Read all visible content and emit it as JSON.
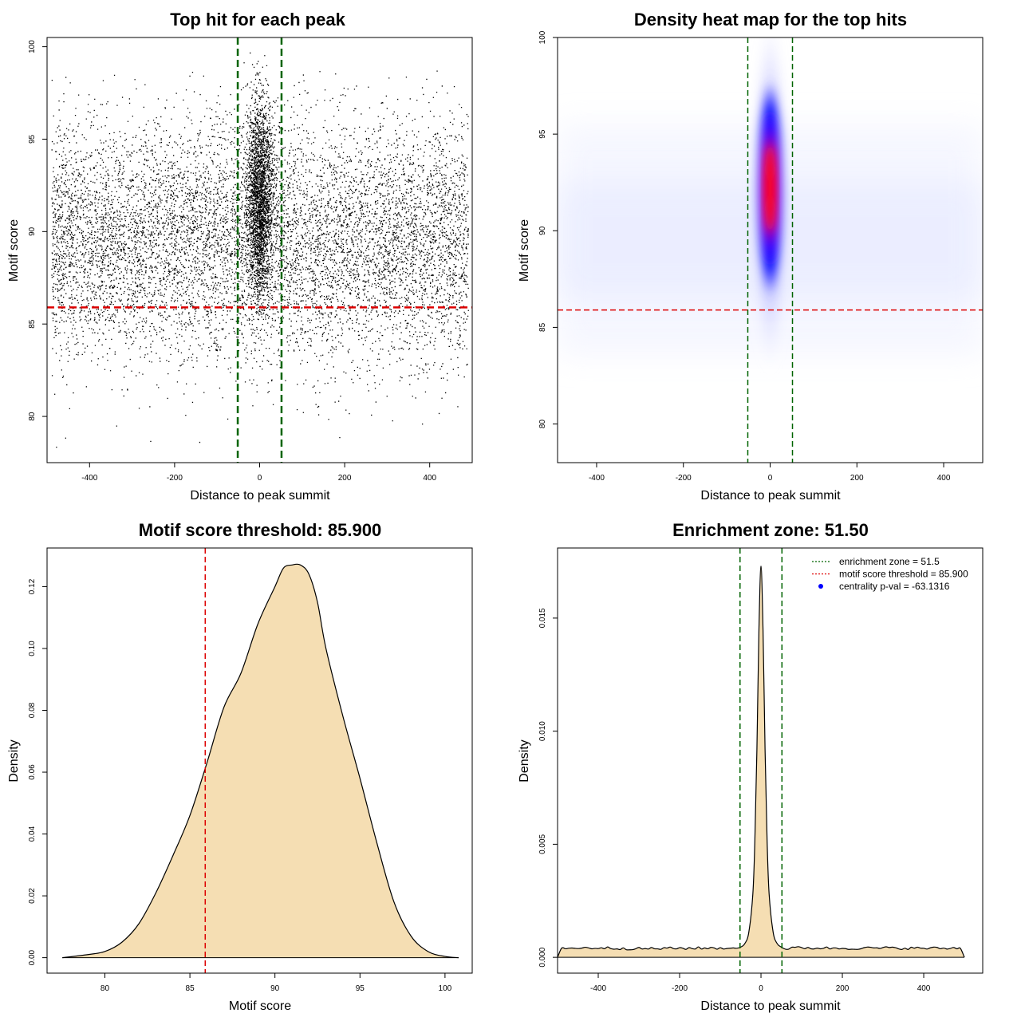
{
  "chart_data": [
    {
      "id": "scatter",
      "type": "scatter",
      "title": "Top hit for each peak",
      "xlabel": "Distance to peak summit",
      "ylabel": "Motif score",
      "xlim": [
        -500,
        500
      ],
      "ylim": [
        77.5,
        100.5
      ],
      "xticks": [
        -400,
        -200,
        0,
        200,
        400
      ],
      "yticks": [
        80,
        85,
        90,
        95,
        100
      ],
      "background_points": {
        "x_range": [
          -500,
          500
        ],
        "y_mean": 89.5,
        "y_sd": 3.2
      },
      "central_points": {
        "x_sd": 16,
        "y_mean": 91.8,
        "y_sd": 2.6,
        "y_range": [
          82.2,
          99.9
        ]
      },
      "ref_lines": [
        {
          "orientation": "vertical",
          "value": -51.5,
          "color": "#006400",
          "style": "dashed"
        },
        {
          "orientation": "vertical",
          "value": 51.5,
          "color": "#006400",
          "style": "dashed"
        },
        {
          "orientation": "horizontal",
          "value": 85.9,
          "color": "#dd0000",
          "style": "dashed"
        }
      ]
    },
    {
      "id": "heatmap",
      "type": "heatmap",
      "title": "Density heat map for the top hits",
      "xlabel": "Distance to peak summit",
      "ylabel": "Motif score",
      "xlim": [
        -490,
        490
      ],
      "ylim": [
        78,
        100
      ],
      "xticks": [
        -400,
        -200,
        0,
        200,
        400
      ],
      "yticks": [
        80,
        85,
        90,
        95,
        100
      ],
      "colors": [
        "#ffffff",
        "#0000ff",
        "#ff0000"
      ],
      "peak_center": {
        "x": 0,
        "y": 92.2
      },
      "ref_lines": [
        {
          "orientation": "vertical",
          "value": -51.5,
          "color": "#006400",
          "style": "dashed"
        },
        {
          "orientation": "vertical",
          "value": 51.5,
          "color": "#006400",
          "style": "dashed"
        },
        {
          "orientation": "horizontal",
          "value": 85.9,
          "color": "#dd0000",
          "style": "dashed"
        }
      ]
    },
    {
      "id": "density_score",
      "type": "area",
      "title": "Motif score threshold: 85.900",
      "xlabel": "Motif score",
      "ylabel": "Density",
      "xlim": [
        76.6,
        101.6
      ],
      "ylim": [
        -0.005,
        0.1325
      ],
      "xticks": [
        80,
        85,
        90,
        95,
        100
      ],
      "yticks": [
        0.0,
        0.02,
        0.04,
        0.06,
        0.08,
        0.1,
        0.12
      ],
      "ytick_labels": [
        "0.00",
        "0.02",
        "0.04",
        "0.06",
        "0.08",
        "0.10",
        "0.12"
      ],
      "fill_color": "#f5deb3",
      "x": [
        77.5,
        79,
        80,
        81,
        82,
        83,
        84,
        85,
        86,
        87,
        88,
        89,
        90,
        90.5,
        91,
        91.5,
        92,
        92.5,
        93,
        94,
        95,
        96,
        97,
        98,
        99,
        100,
        100.8
      ],
      "y": [
        0.0,
        0.001,
        0.002,
        0.005,
        0.011,
        0.021,
        0.033,
        0.046,
        0.063,
        0.081,
        0.092,
        0.108,
        0.12,
        0.126,
        0.127,
        0.127,
        0.124,
        0.115,
        0.1,
        0.078,
        0.058,
        0.037,
        0.018,
        0.007,
        0.002,
        0.0004,
        0.0
      ],
      "ref_lines": [
        {
          "orientation": "vertical",
          "value": 85.9,
          "color": "#dd0000",
          "style": "dashed"
        }
      ]
    },
    {
      "id": "density_distance",
      "type": "area",
      "title": "Enrichment zone: 51.50",
      "xlabel": "Distance to peak summit",
      "ylabel": "Density",
      "xlim": [
        -500,
        545
      ],
      "ylim": [
        -0.0007,
        0.0181
      ],
      "xticks": [
        -400,
        -200,
        0,
        200,
        400
      ],
      "yticks": [
        0.0,
        0.005,
        0.01,
        0.015
      ],
      "ytick_labels": [
        "0.000",
        "0.005",
        "0.010",
        "0.015"
      ],
      "fill_color": "#f5deb3",
      "baseline_density": 0.0004,
      "x": [
        -500,
        -490,
        -480,
        -400,
        -300,
        -200,
        -100,
        -60,
        -50,
        -40,
        -30,
        -20,
        -15,
        -10,
        -5,
        0,
        5,
        10,
        15,
        20,
        30,
        40,
        50,
        60,
        100,
        200,
        300,
        400,
        490,
        500
      ],
      "y": [
        0.0,
        0.0004,
        0.0004,
        0.00042,
        0.00038,
        0.0004,
        0.00041,
        0.0004,
        0.00045,
        0.0006,
        0.0011,
        0.0028,
        0.0052,
        0.0092,
        0.0145,
        0.0173,
        0.0145,
        0.0092,
        0.0052,
        0.0028,
        0.0011,
        0.0006,
        0.00045,
        0.0004,
        0.00042,
        0.0004,
        0.00041,
        0.0004,
        0.0004,
        0.0
      ],
      "ref_lines": [
        {
          "orientation": "vertical",
          "value": -51.5,
          "color": "#006400",
          "style": "dashed"
        },
        {
          "orientation": "vertical",
          "value": 51.5,
          "color": "#006400",
          "style": "dashed"
        }
      ],
      "legend": {
        "position": "top-right",
        "entries": [
          {
            "label": "enrichment zone = 51.5",
            "color": "#006400",
            "symbol": "dotted-line"
          },
          {
            "label": "motif score threshold = 85.900",
            "color": "#dd0000",
            "symbol": "dotted-line"
          },
          {
            "label": "centrality p-val = -63.1316",
            "color": "#0000ff",
            "symbol": "dot"
          }
        ]
      }
    }
  ]
}
